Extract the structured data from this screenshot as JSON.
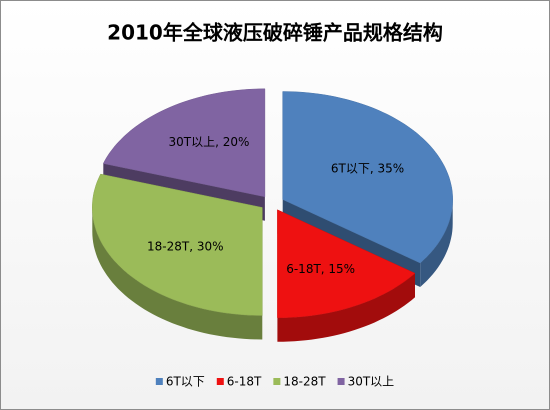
{
  "chart_data": {
    "type": "pie3d",
    "title": "2010年全球液压破碎锤产品规格结构",
    "categories": [
      "6T以下",
      "6-18T",
      "18-28T",
      "30T以上"
    ],
    "values": [
      35,
      15,
      30,
      20
    ],
    "value_labels": [
      "6T以下, 35%",
      "6-18T, 15%",
      "18-28T, 30%",
      "30T以上, 20%"
    ],
    "colors": [
      "#4f81bd",
      "#ee1111",
      "#9bbb59",
      "#8064a2"
    ],
    "legend": "bottom"
  }
}
